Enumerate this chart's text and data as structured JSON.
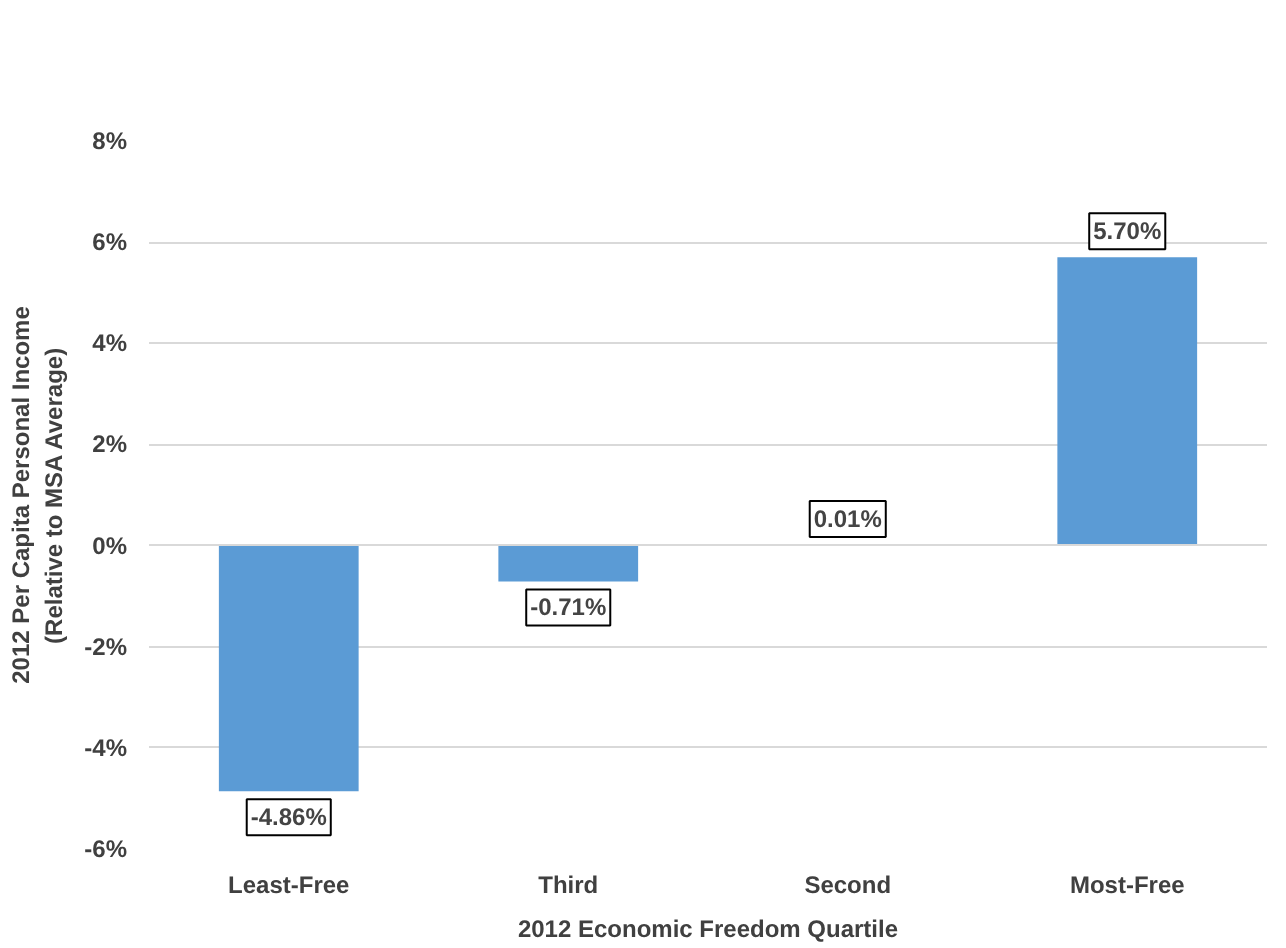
{
  "chart_data": {
    "type": "bar",
    "xlabel": "2012 Economic Freedom Quartile",
    "ylabel": "2012 Per Capita Personal Income\n(Relative to MSA Average)",
    "categories": [
      "Least-Free",
      "Third",
      "Second",
      "Most-Free"
    ],
    "values": [
      -4.86,
      -0.71,
      0.01,
      5.7
    ],
    "value_labels": [
      "-4.86%",
      "-0.71%",
      "0.01%",
      "5.70%"
    ],
    "color": "#5b9bd5",
    "ylim": [
      -6,
      8
    ],
    "yticks": [
      {
        "value": -6,
        "label": "-6%"
      },
      {
        "value": -4,
        "label": "-4%"
      },
      {
        "value": -2,
        "label": "-2%"
      },
      {
        "value": 0,
        "label": "0%"
      },
      {
        "value": 2,
        "label": "2%"
      },
      {
        "value": 4,
        "label": "4%"
      },
      {
        "value": 6,
        "label": "6%"
      },
      {
        "value": 8,
        "label": "8%"
      }
    ],
    "grid": "y"
  }
}
